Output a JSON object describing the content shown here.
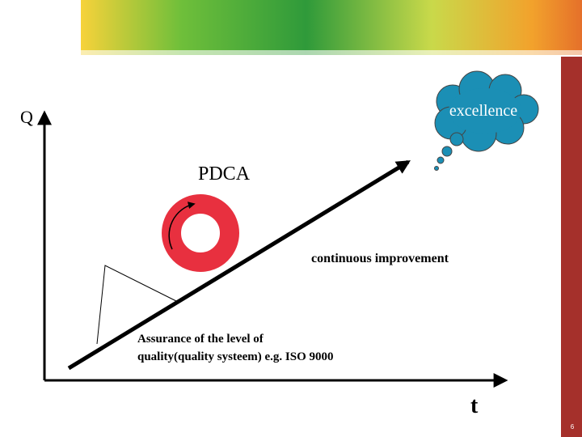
{
  "axes": {
    "y_label": "Q",
    "x_label": "t"
  },
  "cloud": {
    "label": "excellence"
  },
  "cycle": {
    "label": "PDCA"
  },
  "slope": {
    "label": "continuous improvement"
  },
  "wedge": {
    "label_lines": [
      "Assurance of the level of",
      "quality(quality systeem) e.g. ISO 9000"
    ]
  },
  "footer": {
    "page_number": "6"
  }
}
